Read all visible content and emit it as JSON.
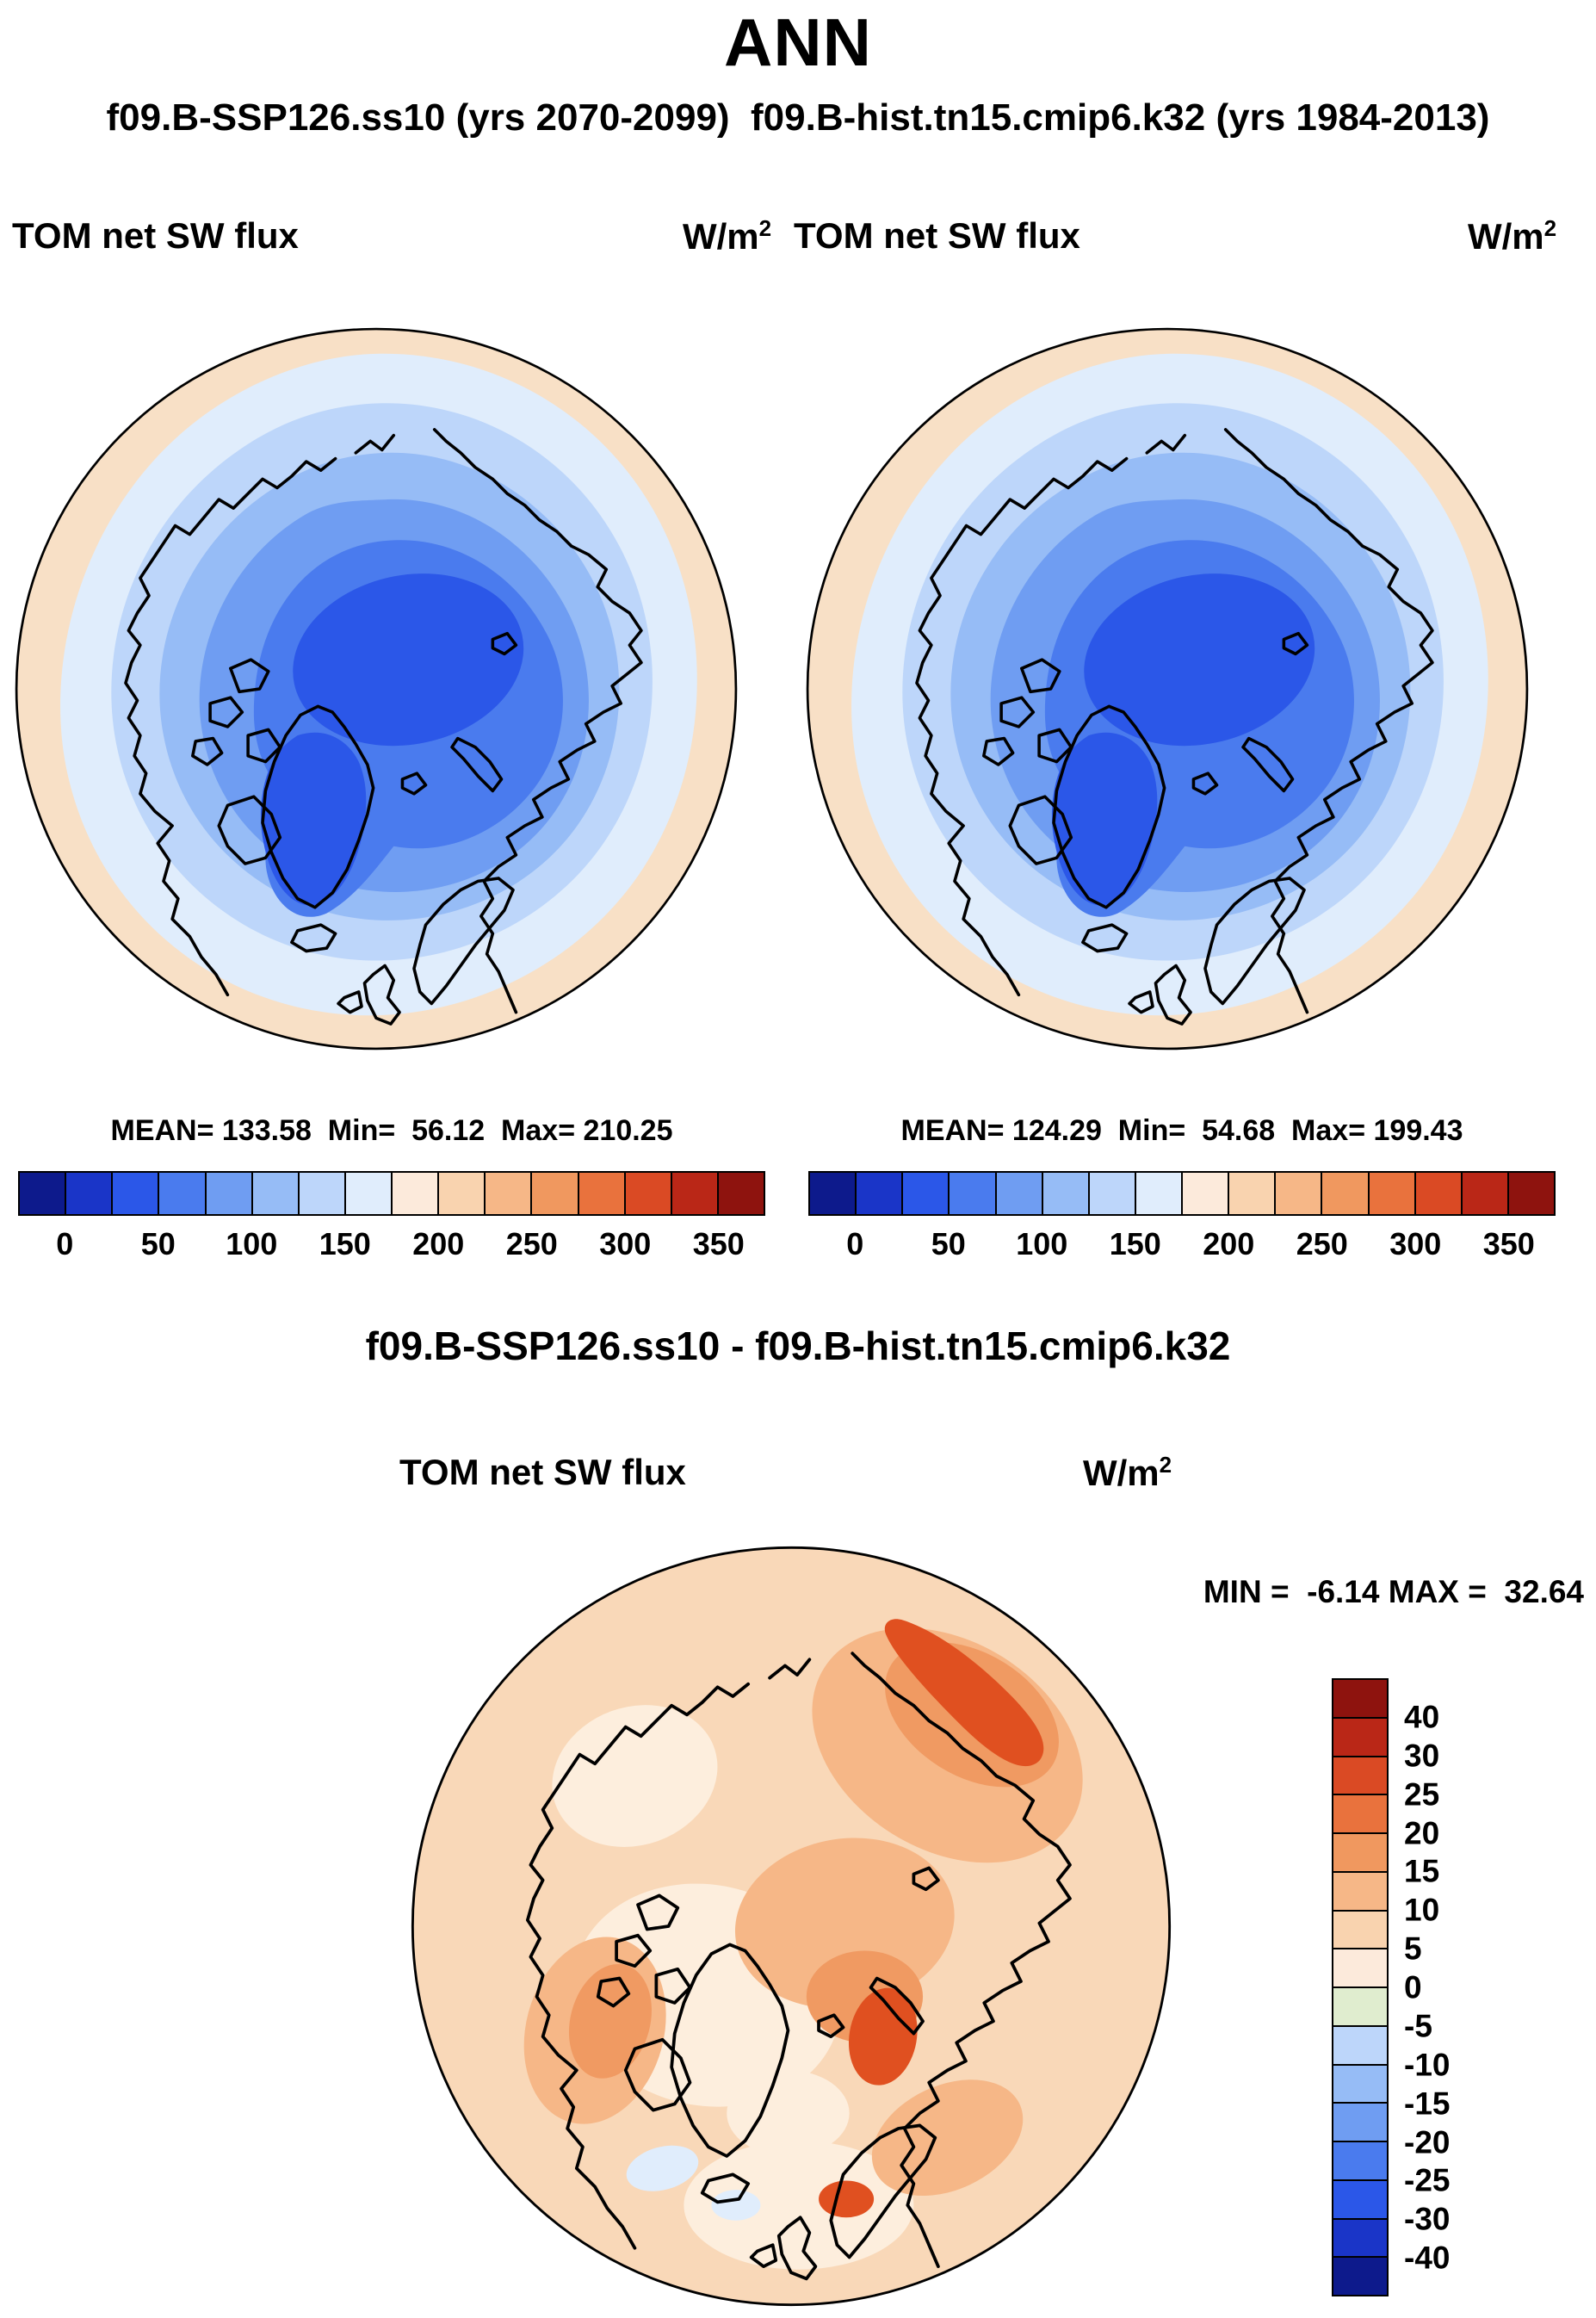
{
  "title": "ANN",
  "subtitle": "f09.B-SSP126.ss10 (yrs 2070-2099)  f09.B-hist.tn15.cmip6.k32 (yrs 1984-2013)",
  "panels": {
    "left": {
      "var_label": "TOM net SW flux",
      "units_base": "W/m",
      "units_exp": "2",
      "stats": "MEAN= 133.58  Min=  56.12  Max= 210.25"
    },
    "right": {
      "var_label": "TOM net SW flux",
      "units_base": "W/m",
      "units_exp": "2",
      "stats": "MEAN= 124.29  Min=  54.68  Max= 199.43"
    }
  },
  "diff": {
    "title": "f09.B-SSP126.ss10 - f09.B-hist.tn15.cmip6.k32",
    "var_label": "TOM net SW flux",
    "units_base": "W/m",
    "units_exp": "2",
    "minmax": "MIN =  -6.14 MAX =  32.64"
  },
  "colorbar_top": {
    "ticks": [
      "0",
      "50",
      "100",
      "150",
      "200",
      "250",
      "300",
      "350"
    ],
    "colors": [
      "#0d1a8c",
      "#1a35c8",
      "#2b57e8",
      "#4a7bee",
      "#6f9df2",
      "#96bcf6",
      "#bdd6fa",
      "#e0edfc",
      "#fceadb",
      "#f9d3af",
      "#f6b787",
      "#f0985f",
      "#e9723d",
      "#da4a24",
      "#ba2717",
      "#8e130e"
    ]
  },
  "colorbar_diff": {
    "labels": [
      "40",
      "30",
      "25",
      "20",
      "15",
      "10",
      "5",
      "0",
      "-5",
      "-10",
      "-15",
      "-20",
      "-25",
      "-30",
      "-40"
    ],
    "colors": [
      "#8e130e",
      "#ba2717",
      "#da4a24",
      "#e9723d",
      "#f0985f",
      "#f6b787",
      "#f9d3af",
      "#fceadb",
      "#e0edcf",
      "#bdd6fa",
      "#96bcf6",
      "#6f9df2",
      "#4a7bee",
      "#2b57e8",
      "#1a35c8",
      "#0d1a8c"
    ]
  },
  "chart_data": [
    {
      "type": "heatmap",
      "subtype": "north-polar-stereographic-contour-map",
      "panel": "top-left",
      "run": "f09.B-SSP126.ss10",
      "years": "2070-2099",
      "season": "ANN",
      "variable": "TOM net SW flux",
      "units": "W/m^2",
      "mean": 133.58,
      "min": 56.12,
      "max": 210.25,
      "contour_levels": [
        0,
        25,
        50,
        75,
        100,
        125,
        150,
        175,
        200,
        225,
        250,
        275,
        300,
        325,
        350
      ],
      "colorbar_tick_labels": [
        0,
        50,
        100,
        150,
        200,
        250,
        300,
        350
      ],
      "legend_position": "bottom"
    },
    {
      "type": "heatmap",
      "subtype": "north-polar-stereographic-contour-map",
      "panel": "top-right",
      "run": "f09.B-hist.tn15.cmip6.k32",
      "years": "1984-2013",
      "season": "ANN",
      "variable": "TOM net SW flux",
      "units": "W/m^2",
      "mean": 124.29,
      "min": 54.68,
      "max": 199.43,
      "contour_levels": [
        0,
        25,
        50,
        75,
        100,
        125,
        150,
        175,
        200,
        225,
        250,
        275,
        300,
        325,
        350
      ],
      "colorbar_tick_labels": [
        0,
        50,
        100,
        150,
        200,
        250,
        300,
        350
      ],
      "legend_position": "bottom"
    },
    {
      "type": "heatmap",
      "subtype": "north-polar-stereographic-contour-map",
      "panel": "bottom-difference",
      "run": "f09.B-SSP126.ss10 - f09.B-hist.tn15.cmip6.k32",
      "season": "ANN",
      "variable": "TOM net SW flux",
      "units": "W/m^2",
      "min": -6.14,
      "max": 32.64,
      "contour_levels": [
        -40,
        -30,
        -25,
        -20,
        -15,
        -10,
        -5,
        0,
        5,
        10,
        15,
        20,
        25,
        30,
        40
      ],
      "legend_position": "right"
    }
  ]
}
